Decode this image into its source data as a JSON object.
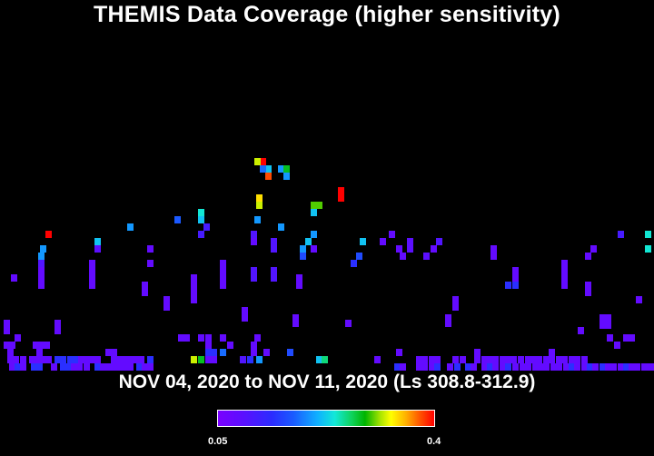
{
  "chart_data": {
    "type": "heatmap",
    "title": "THEMIS Data Coverage (higher sensitivity)",
    "subtitle": "NOV 04, 2020 to NOV 11, 2020 (Ls 308.8-312.9)",
    "colorbar": {
      "min_label": "0.05",
      "max_label": "0.4",
      "min": 0.05,
      "max": 0.4,
      "colormap": "rainbow (purple-blue-cyan-green-yellow-red)"
    },
    "grid": "off",
    "cells": [
      [
        286,
        174,
        0.4
      ],
      [
        280,
        174,
        0.32
      ],
      [
        292,
        182,
        0.22
      ],
      [
        286,
        182,
        0.18
      ],
      [
        306,
        182,
        0.2
      ],
      [
        312,
        182,
        0.28
      ],
      [
        292,
        190,
        0.38
      ],
      [
        312,
        190,
        0.2
      ],
      [
        372,
        206,
        0.4
      ],
      [
        372,
        214,
        0.4
      ],
      [
        282,
        214,
        0.34
      ],
      [
        342,
        222,
        0.3
      ],
      [
        348,
        222,
        0.3
      ],
      [
        282,
        222,
        0.32
      ],
      [
        342,
        230,
        0.22
      ],
      [
        218,
        230,
        0.24
      ],
      [
        192,
        238,
        0.17
      ],
      [
        218,
        238,
        0.22
      ],
      [
        280,
        238,
        0.2
      ],
      [
        140,
        246,
        0.2
      ],
      [
        224,
        246,
        0.11
      ],
      [
        306,
        246,
        0.2
      ],
      [
        50,
        254,
        0.4
      ],
      [
        218,
        254,
        0.11
      ],
      [
        276,
        254,
        0.1
      ],
      [
        342,
        254,
        0.2
      ],
      [
        428,
        254,
        0.08
      ],
      [
        680,
        254,
        0.11
      ],
      [
        710,
        254,
        0.24
      ],
      [
        104,
        262,
        0.22
      ],
      [
        276,
        262,
        0.08
      ],
      [
        298,
        262,
        0.1
      ],
      [
        336,
        262,
        0.22
      ],
      [
        396,
        262,
        0.22
      ],
      [
        418,
        262,
        0.08
      ],
      [
        448,
        262,
        0.09
      ],
      [
        480,
        262,
        0.1
      ],
      [
        44,
        270,
        0.2
      ],
      [
        104,
        270,
        0.09
      ],
      [
        162,
        270,
        0.08
      ],
      [
        298,
        270,
        0.1
      ],
      [
        330,
        270,
        0.2
      ],
      [
        342,
        270,
        0.08
      ],
      [
        436,
        270,
        0.08
      ],
      [
        448,
        270,
        0.09
      ],
      [
        474,
        270,
        0.08
      ],
      [
        540,
        270,
        0.08
      ],
      [
        650,
        270,
        0.08
      ],
      [
        710,
        270,
        0.24
      ],
      [
        42,
        278,
        0.2
      ],
      [
        330,
        278,
        0.16
      ],
      [
        392,
        278,
        0.16
      ],
      [
        440,
        278,
        0.08
      ],
      [
        466,
        278,
        0.09
      ],
      [
        540,
        278,
        0.08
      ],
      [
        644,
        278,
        0.08
      ],
      [
        42,
        286,
        0.1
      ],
      [
        98,
        286,
        0.08
      ],
      [
        162,
        286,
        0.08
      ],
      [
        242,
        286,
        0.08
      ],
      [
        386,
        286,
        0.14
      ],
      [
        618,
        286,
        0.08
      ],
      [
        42,
        294,
        0.08
      ],
      [
        98,
        294,
        0.08
      ],
      [
        242,
        294,
        0.08
      ],
      [
        276,
        294,
        0.1
      ],
      [
        298,
        294,
        0.1
      ],
      [
        564,
        294,
        0.08
      ],
      [
        618,
        294,
        0.08
      ],
      [
        12,
        302,
        0.08
      ],
      [
        42,
        302,
        0.08
      ],
      [
        98,
        302,
        0.08
      ],
      [
        210,
        302,
        0.08
      ],
      [
        242,
        302,
        0.08
      ],
      [
        276,
        302,
        0.1
      ],
      [
        298,
        302,
        0.1
      ],
      [
        326,
        302,
        0.08
      ],
      [
        564,
        302,
        0.08
      ],
      [
        618,
        302,
        0.08
      ],
      [
        42,
        310,
        0.08
      ],
      [
        98,
        310,
        0.08
      ],
      [
        156,
        310,
        0.08
      ],
      [
        210,
        310,
        0.08
      ],
      [
        242,
        310,
        0.08
      ],
      [
        326,
        310,
        0.08
      ],
      [
        556,
        310,
        0.14
      ],
      [
        564,
        310,
        0.14
      ],
      [
        618,
        310,
        0.08
      ],
      [
        644,
        310,
        0.08
      ],
      [
        156,
        318,
        0.08
      ],
      [
        210,
        318,
        0.08
      ],
      [
        644,
        318,
        0.08
      ],
      [
        180,
        326,
        0.08
      ],
      [
        210,
        326,
        0.08
      ],
      [
        498,
        326,
        0.08
      ],
      [
        700,
        326,
        0.08
      ],
      [
        180,
        334,
        0.08
      ],
      [
        498,
        334,
        0.08
      ],
      [
        266,
        338,
        0.08
      ],
      [
        266,
        346,
        0.08
      ],
      [
        4,
        352,
        0.08
      ],
      [
        60,
        352,
        0.08
      ],
      [
        322,
        346,
        0.08
      ],
      [
        322,
        352,
        0.08
      ],
      [
        380,
        352,
        0.08
      ],
      [
        490,
        346,
        0.08
      ],
      [
        490,
        352,
        0.08
      ],
      [
        660,
        346,
        0.08
      ],
      [
        666,
        346,
        0.08
      ],
      [
        4,
        360,
        0.08
      ],
      [
        60,
        360,
        0.08
      ],
      [
        636,
        360,
        0.08
      ],
      [
        660,
        354,
        0.08
      ],
      [
        666,
        354,
        0.08
      ],
      [
        16,
        368,
        0.08
      ],
      [
        196,
        368,
        0.08
      ],
      [
        202,
        368,
        0.08
      ],
      [
        218,
        368,
        0.08
      ],
      [
        226,
        368,
        0.08
      ],
      [
        242,
        368,
        0.08
      ],
      [
        280,
        368,
        0.08
      ],
      [
        686,
        368,
        0.08
      ],
      [
        692,
        368,
        0.08
      ],
      [
        668,
        368,
        0.08
      ],
      [
        4,
        376,
        0.08
      ],
      [
        10,
        376,
        0.08
      ],
      [
        36,
        376,
        0.08
      ],
      [
        42,
        376,
        0.08
      ],
      [
        48,
        376,
        0.08
      ],
      [
        226,
        376,
        0.08
      ],
      [
        250,
        376,
        0.08
      ],
      [
        276,
        376,
        0.08
      ],
      [
        676,
        376,
        0.08
      ],
      [
        8,
        384,
        0.08
      ],
      [
        40,
        384,
        0.08
      ],
      [
        116,
        384,
        0.08
      ],
      [
        122,
        384,
        0.08
      ],
      [
        226,
        384,
        0.14
      ],
      [
        232,
        384,
        0.14
      ],
      [
        242,
        384,
        0.18
      ],
      [
        276,
        384,
        0.08
      ],
      [
        290,
        384,
        0.08
      ],
      [
        316,
        384,
        0.16
      ],
      [
        436,
        384,
        0.08
      ],
      [
        522,
        384,
        0.08
      ],
      [
        604,
        384,
        0.08
      ],
      [
        8,
        392,
        0.08
      ],
      [
        14,
        392,
        0.08
      ],
      [
        22,
        392,
        0.08
      ],
      [
        32,
        392,
        0.08
      ],
      [
        38,
        392,
        0.08
      ],
      [
        44,
        392,
        0.08
      ],
      [
        50,
        392,
        0.08
      ],
      [
        60,
        392,
        0.14
      ],
      [
        66,
        392,
        0.14
      ],
      [
        74,
        392,
        0.14
      ],
      [
        80,
        392,
        0.14
      ],
      [
        86,
        392,
        0.08
      ],
      [
        92,
        392,
        0.08
      ],
      [
        98,
        392,
        0.08
      ],
      [
        104,
        392,
        0.08
      ],
      [
        122,
        392,
        0.08
      ],
      [
        128,
        392,
        0.08
      ],
      [
        134,
        392,
        0.08
      ],
      [
        140,
        392,
        0.08
      ],
      [
        146,
        392,
        0.08
      ],
      [
        152,
        392,
        0.08
      ],
      [
        162,
        392,
        0.14
      ],
      [
        210,
        392,
        0.32
      ],
      [
        218,
        392,
        0.28
      ],
      [
        226,
        392,
        0.08
      ],
      [
        232,
        392,
        0.08
      ],
      [
        264,
        392,
        0.1
      ],
      [
        272,
        392,
        0.14
      ],
      [
        282,
        392,
        0.2
      ],
      [
        348,
        392,
        0.22
      ],
      [
        354,
        392,
        0.26
      ],
      [
        412,
        392,
        0.08
      ],
      [
        458,
        392,
        0.08
      ],
      [
        464,
        392,
        0.08
      ],
      [
        472,
        392,
        0.08
      ],
      [
        478,
        392,
        0.08
      ],
      [
        498,
        392,
        0.08
      ],
      [
        506,
        392,
        0.08
      ],
      [
        522,
        392,
        0.08
      ],
      [
        530,
        392,
        0.08
      ],
      [
        536,
        392,
        0.08
      ],
      [
        542,
        392,
        0.08
      ],
      [
        550,
        392,
        0.08
      ],
      [
        556,
        392,
        0.08
      ],
      [
        562,
        392,
        0.08
      ],
      [
        570,
        392,
        0.08
      ],
      [
        578,
        392,
        0.08
      ],
      [
        584,
        392,
        0.08
      ],
      [
        590,
        392,
        0.08
      ],
      [
        598,
        392,
        0.08
      ],
      [
        604,
        392,
        0.08
      ],
      [
        612,
        392,
        0.08
      ],
      [
        618,
        392,
        0.08
      ],
      [
        626,
        392,
        0.08
      ],
      [
        632,
        392,
        0.08
      ],
      [
        640,
        392,
        0.08
      ],
      [
        10,
        400,
        0.08
      ],
      [
        16,
        400,
        0.14
      ],
      [
        22,
        400,
        0.08
      ],
      [
        34,
        400,
        0.14
      ],
      [
        40,
        400,
        0.14
      ],
      [
        56,
        400,
        0.08
      ],
      [
        66,
        400,
        0.14
      ],
      [
        72,
        400,
        0.14
      ],
      [
        78,
        400,
        0.08
      ],
      [
        84,
        400,
        0.08
      ],
      [
        92,
        400,
        0.08
      ],
      [
        104,
        400,
        0.14
      ],
      [
        110,
        400,
        0.08
      ],
      [
        116,
        400,
        0.08
      ],
      [
        122,
        400,
        0.08
      ],
      [
        128,
        400,
        0.08
      ],
      [
        134,
        400,
        0.08
      ],
      [
        140,
        400,
        0.08
      ],
      [
        150,
        400,
        0.14
      ],
      [
        156,
        400,
        0.08
      ],
      [
        162,
        400,
        0.08
      ],
      [
        434,
        400,
        0.14
      ],
      [
        440,
        400,
        0.08
      ],
      [
        458,
        400,
        0.08
      ],
      [
        464,
        400,
        0.08
      ],
      [
        472,
        400,
        0.08
      ],
      [
        478,
        400,
        0.14
      ],
      [
        492,
        400,
        0.08
      ],
      [
        500,
        400,
        0.14
      ],
      [
        512,
        400,
        0.14
      ],
      [
        518,
        400,
        0.08
      ],
      [
        530,
        400,
        0.08
      ],
      [
        536,
        400,
        0.14
      ],
      [
        542,
        400,
        0.08
      ],
      [
        550,
        400,
        0.08
      ],
      [
        556,
        400,
        0.14
      ],
      [
        564,
        400,
        0.08
      ],
      [
        572,
        400,
        0.08
      ],
      [
        578,
        400,
        0.08
      ],
      [
        586,
        400,
        0.08
      ],
      [
        592,
        400,
        0.08
      ],
      [
        598,
        400,
        0.08
      ],
      [
        606,
        400,
        0.08
      ],
      [
        612,
        400,
        0.08
      ],
      [
        620,
        400,
        0.08
      ],
      [
        626,
        400,
        0.14
      ],
      [
        632,
        400,
        0.08
      ],
      [
        640,
        400,
        0.08
      ],
      [
        646,
        400,
        0.14
      ],
      [
        652,
        400,
        0.08
      ],
      [
        660,
        400,
        0.14
      ],
      [
        666,
        400,
        0.08
      ],
      [
        672,
        400,
        0.08
      ],
      [
        680,
        400,
        0.08
      ],
      [
        686,
        400,
        0.14
      ],
      [
        692,
        400,
        0.08
      ],
      [
        698,
        400,
        0.08
      ],
      [
        706,
        400,
        0.08
      ],
      [
        712,
        400,
        0.08
      ],
      [
        716,
        400,
        0.08
      ]
    ]
  }
}
